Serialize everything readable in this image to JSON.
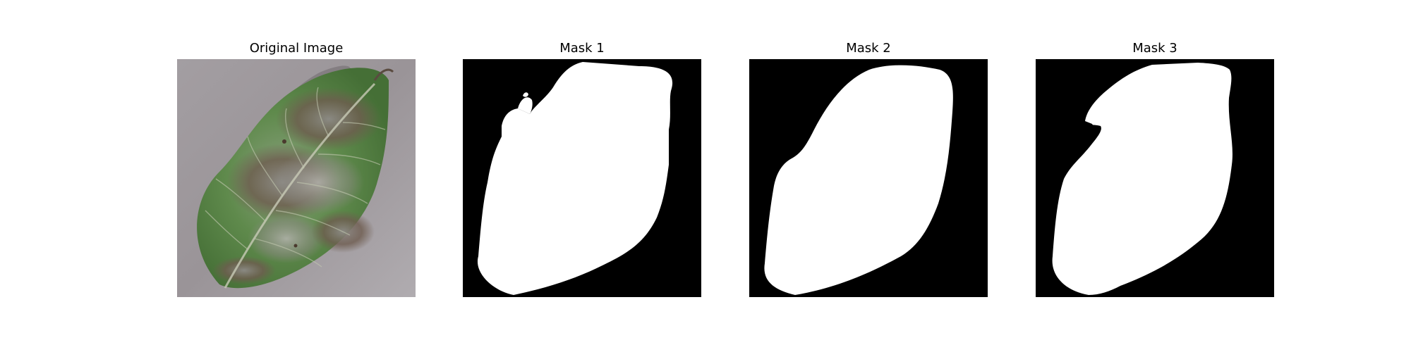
{
  "panels": [
    {
      "title": "Original Image"
    },
    {
      "title": "Mask 1"
    },
    {
      "title": "Mask 2"
    },
    {
      "title": "Mask 3"
    }
  ],
  "colors": {
    "background": "#ffffff",
    "mask_background": "#000000",
    "mask_foreground": "#ffffff",
    "leaf_surface_gray": "#9b9598",
    "leaf_green": "#5e8a4a",
    "leaf_blight_brown": "#6f5a4c"
  }
}
